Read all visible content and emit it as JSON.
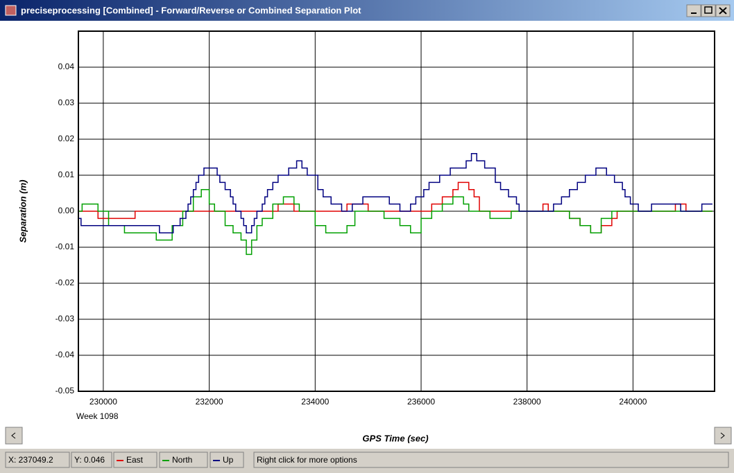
{
  "window": {
    "title": "preciseprocessing [Combined] - Forward/Reverse or Combined Separation Plot"
  },
  "status_bar": {
    "x_readout": "X: 237049.2",
    "y_readout": "Y: 0.046",
    "message": "Right click for more options"
  },
  "chart_data": {
    "type": "step",
    "xlabel": "GPS Time (sec)",
    "ylabel": "Separation (m)",
    "annotation": "Week 1098",
    "xlim": [
      229530,
      241540
    ],
    "xticks": [
      230000,
      232000,
      234000,
      236000,
      238000,
      240000
    ],
    "ylim": [
      -0.05,
      0.05
    ],
    "yticks": [
      -0.05,
      -0.04,
      -0.03,
      -0.02,
      -0.01,
      {
        "value": 0,
        "label": "0.00"
      },
      0.01,
      0.02,
      0.03,
      0.04
    ],
    "grid": true,
    "series": [
      {
        "name": "East",
        "color": "#e00000",
        "x": [
          229530,
          229900,
          230600,
          232900,
          233300,
          233600,
          234600,
          235000,
          236200,
          236400,
          236600,
          236700,
          236900,
          237000,
          237100,
          238300,
          238400,
          238800,
          239000,
          239200,
          239400,
          239600,
          239700,
          240800,
          241000,
          241500
        ],
        "values": [
          0,
          -0.002,
          0,
          0,
          0.002,
          0,
          0.002,
          0,
          0.002,
          0.004,
          0.006,
          0.008,
          0.006,
          0.004,
          0,
          0.002,
          0,
          -0.002,
          -0.004,
          -0.006,
          -0.004,
          -0.002,
          0,
          0.002,
          0,
          0
        ]
      },
      {
        "name": "North",
        "color": "#00a000",
        "x": [
          229530,
          229600,
          229900,
          230100,
          230400,
          231000,
          231300,
          231500,
          231700,
          231850,
          232000,
          232100,
          232300,
          232450,
          232600,
          232700,
          232800,
          232900,
          233000,
          233200,
          233400,
          233600,
          233700,
          234000,
          234200,
          234600,
          234750,
          235300,
          235600,
          235800,
          236000,
          236200,
          236400,
          236600,
          236800,
          236900,
          237300,
          237700,
          238800,
          239000,
          239200,
          239400,
          239600,
          241500
        ],
        "values": [
          0,
          0.002,
          0,
          -0.004,
          -0.006,
          -0.008,
          -0.004,
          0,
          0.004,
          0.006,
          0.002,
          0,
          -0.004,
          -0.006,
          -0.008,
          -0.012,
          -0.008,
          -0.004,
          -0.002,
          0.002,
          0.004,
          0.002,
          0,
          -0.004,
          -0.006,
          -0.004,
          0,
          -0.002,
          -0.004,
          -0.006,
          -0.002,
          0,
          0.002,
          0.004,
          0.002,
          0,
          -0.002,
          0,
          -0.002,
          -0.004,
          -0.006,
          -0.002,
          0,
          0
        ]
      },
      {
        "name": "Up",
        "color": "#000080",
        "x": [
          229530,
          229580,
          230700,
          231060,
          231320,
          231450,
          231560,
          231600,
          231650,
          231700,
          231750,
          231800,
          231900,
          232150,
          232200,
          232300,
          232400,
          232450,
          232500,
          232600,
          232650,
          232700,
          232800,
          232850,
          232900,
          233000,
          233050,
          233100,
          233200,
          233300,
          233500,
          233650,
          233750,
          233850,
          234050,
          234150,
          234300,
          234500,
          234700,
          234900,
          235400,
          235600,
          235800,
          235900,
          236050,
          236150,
          236350,
          236550,
          236850,
          236950,
          237050,
          237200,
          237400,
          237500,
          237650,
          237800,
          237850,
          238500,
          238650,
          238800,
          238950,
          239100,
          239300,
          239500,
          239650,
          239800,
          239850,
          239950,
          240100,
          240350,
          240900,
          241300,
          241500
        ],
        "values": [
          -0.002,
          -0.004,
          -0.004,
          -0.006,
          -0.004,
          -0.002,
          0,
          0.002,
          0.004,
          0.006,
          0.008,
          0.01,
          0.012,
          0.01,
          0.008,
          0.006,
          0.004,
          0.002,
          0,
          -0.002,
          -0.004,
          -0.006,
          -0.004,
          -0.002,
          0,
          0.002,
          0.004,
          0.006,
          0.008,
          0.01,
          0.012,
          0.014,
          0.012,
          0.01,
          0.006,
          0.004,
          0.002,
          0,
          0.002,
          0.004,
          0.002,
          0,
          0.002,
          0.004,
          0.006,
          0.008,
          0.01,
          0.012,
          0.014,
          0.016,
          0.014,
          0.012,
          0.008,
          0.006,
          0.004,
          0.002,
          0,
          0.002,
          0.004,
          0.006,
          0.008,
          0.01,
          0.012,
          0.01,
          0.008,
          0.006,
          0.004,
          0.002,
          0,
          0.002,
          0,
          0.002,
          0.002
        ]
      }
    ]
  }
}
